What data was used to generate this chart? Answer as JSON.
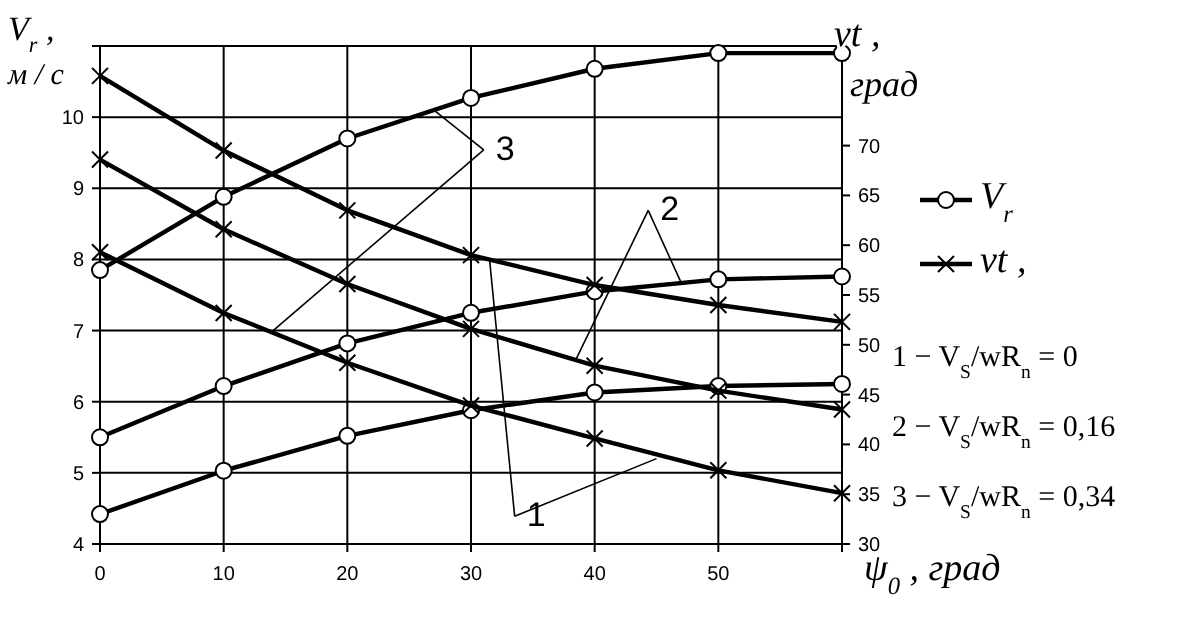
{
  "chart_data": {
    "type": "line",
    "xlabel": "ψ$_{0}$ , град",
    "ylabel": "V$_{r}$ , м / с",
    "y2label": "νt , град",
    "x": [
      0,
      10,
      20,
      30,
      40,
      50,
      60
    ],
    "xlim": [
      0,
      60
    ],
    "xticks": [
      0,
      10,
      20,
      30,
      40,
      50,
      {
        "value": 60,
        "label": null
      }
    ],
    "ylim": [
      4,
      11
    ],
    "yticks": [
      4,
      5,
      6,
      7,
      8,
      9,
      10,
      {
        "value": 11,
        "label": null
      }
    ],
    "y2lim": [
      30,
      80
    ],
    "y2ticks": [
      30,
      35,
      40,
      45,
      50,
      55,
      60,
      65,
      70
    ],
    "grid": true,
    "legend": "right",
    "line_style": "solid",
    "series": [
      {
        "name": "V$_{r}$",
        "color": "#000000",
        "marker": "circle",
        "values": [
          4.42,
          5.03,
          5.52,
          5.88,
          6.13,
          6.22,
          6.25
        ]
      },
      {
        "color": "#000000",
        "marker": "circle",
        "values": [
          5.5,
          6.22,
          6.82,
          7.25,
          7.55,
          7.72,
          7.76
        ]
      },
      {
        "color": "#000000",
        "marker": "circle",
        "values": [
          7.85,
          8.88,
          9.7,
          10.27,
          10.68,
          10.9,
          10.9
        ]
      },
      {
        "name": "νt ,",
        "color": "#000000",
        "marker": "cross",
        "axis": "y2",
        "values": [
          77,
          69.5,
          63.5,
          59,
          56,
          54,
          52.3
        ]
      },
      {
        "color": "#000000",
        "marker": "cross",
        "axis": "y2",
        "values": [
          68.6,
          61.6,
          56.1,
          51.6,
          47.9,
          45.4,
          43.5
        ]
      },
      {
        "color": "#000000",
        "marker": "cross",
        "axis": "y2",
        "values": [
          59.3,
          53.2,
          48.2,
          43.9,
          40.6,
          37.4,
          35.1
        ]
      }
    ],
    "annotations": [
      {
        "text": "3",
        "x": 27,
        "y": 10.1
      },
      {
        "text": "2",
        "x": 47,
        "y": 7.67
      },
      {
        "text": "1",
        "x": 31.5,
        "y": 8.0
      },
      "1 − V$_{S}$/wR$_{n}$ = 0",
      "2 − V$_{S}$/wR$_{n}$ = 0,16",
      "3 − V$_{S}$/wR$_{n}$ = 0,34"
    ]
  }
}
